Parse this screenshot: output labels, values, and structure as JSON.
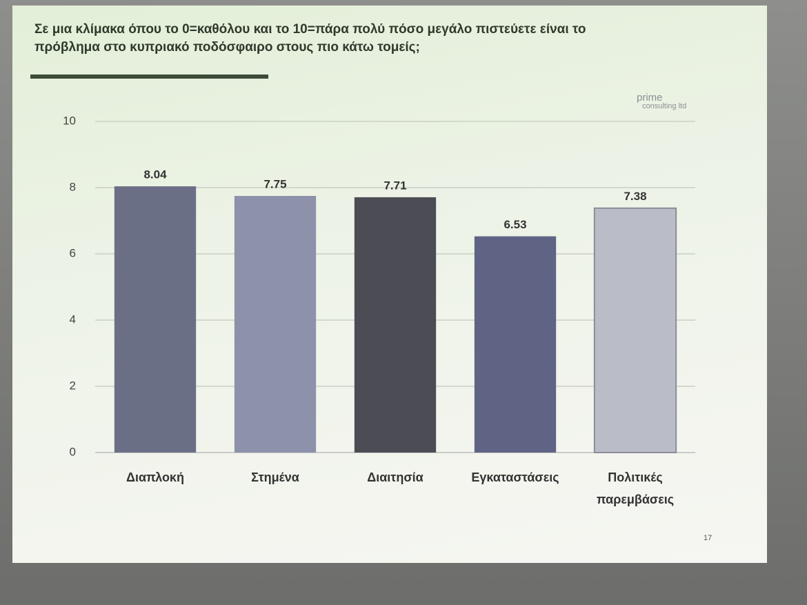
{
  "chart_data": {
    "type": "bar",
    "title": "Σε μια κλίμακα όπου το 0=καθόλου και το 10=πάρα πολύ πόσο μεγάλο πιστεύετε είναι το πρόβλημα στο κυπριακό ποδόσφαιρο στους πιο κάτω τομείς;",
    "categories": [
      "Διαπλοκή",
      "Στημένα",
      "Διαιτησία",
      "Εγκαταστάσεις",
      "Πολιτικές παρεμβάσεις"
    ],
    "values": [
      8.04,
      7.75,
      7.71,
      6.53,
      7.38
    ],
    "colors": [
      "#6b6f86",
      "#8d92aa",
      "#4c4c54",
      "#5f6384",
      "#babdc8"
    ],
    "ylim": [
      0,
      10
    ],
    "yticks": [
      0,
      2,
      4,
      6,
      8,
      10
    ],
    "grid": true
  },
  "logo": {
    "name": "prime",
    "subtitle": "consulting ltd"
  },
  "page_number": 17
}
